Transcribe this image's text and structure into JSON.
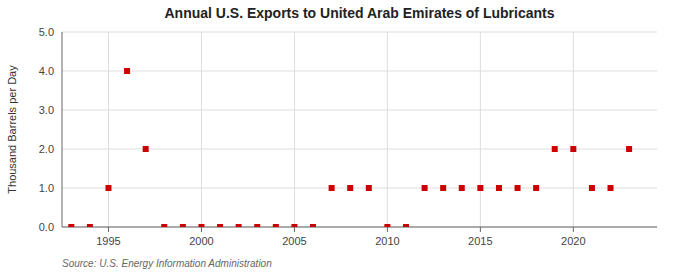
{
  "chart_data": {
    "type": "scatter",
    "title": "Annual U.S. Exports to United Arab Emirates of Lubricants",
    "ylabel": "Thousand Barrels per Day",
    "source": "Source: U.S. Energy Information Administration",
    "x": [
      1993,
      1994,
      1995,
      1996,
      1997,
      1998,
      1999,
      2000,
      2001,
      2002,
      2003,
      2004,
      2005,
      2006,
      2007,
      2008,
      2009,
      2010,
      2011,
      2012,
      2013,
      2014,
      2015,
      2016,
      2017,
      2018,
      2019,
      2020,
      2021,
      2022,
      2023
    ],
    "values": [
      0,
      0,
      1,
      4,
      2,
      0,
      0,
      0,
      0,
      0,
      0,
      0,
      0,
      0,
      1,
      1,
      1,
      0,
      0,
      1,
      1,
      1,
      1,
      1,
      1,
      1,
      2,
      2,
      1,
      1,
      2
    ],
    "color": "#cc0000",
    "marker": "square",
    "xlim": [
      1992.5,
      2024.5
    ],
    "xticks": [
      1995,
      2000,
      2005,
      2010,
      2015,
      2020
    ],
    "ylim": [
      0.0,
      5.0
    ],
    "yticks": [
      {
        "value": 0.0,
        "label": "0.0"
      },
      {
        "value": 1.0,
        "label": "1.0"
      },
      {
        "value": 2.0,
        "label": "2.0"
      },
      {
        "value": 3.0,
        "label": "3.0"
      },
      {
        "value": 4.0,
        "label": "4.0"
      },
      {
        "value": 5.0,
        "label": "5.0"
      }
    ],
    "grid": true
  }
}
